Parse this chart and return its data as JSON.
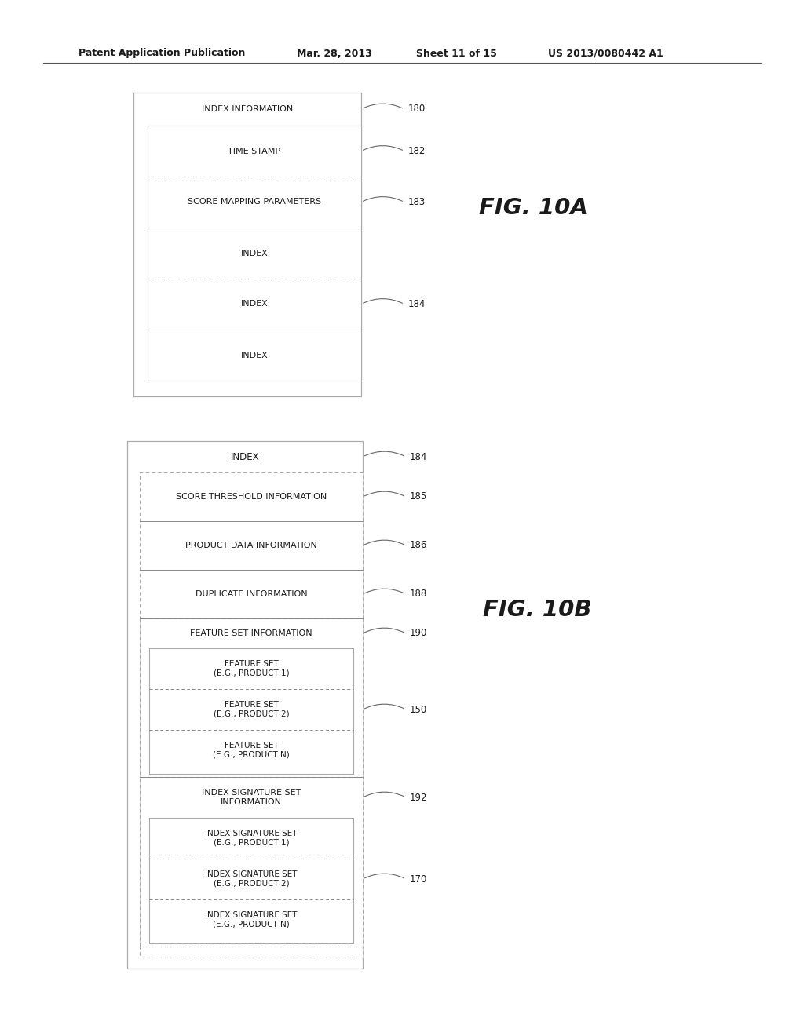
{
  "bg_color": "#ffffff",
  "header_text": "Patent Application Publication",
  "header_date": "Mar. 28, 2013",
  "header_sheet": "Sheet 11 of 15",
  "header_patent": "US 2013/0080442 A1",
  "fig10a_label": "FIG. 10A",
  "fig10b_label": "FIG. 10B",
  "diag1": {
    "title": "INDEX INFORMATION",
    "ref": "180",
    "inner_rows": [
      {
        "label": "TIME STAMP",
        "ref": "182",
        "sep_dotted": false
      },
      {
        "label": "SCORE MAPPING PARAMETERS",
        "ref": "183",
        "sep_dotted": true
      },
      {
        "label": "INDEX",
        "ref": null,
        "sep_dotted": false
      },
      {
        "label": "INDEX",
        "ref": "184",
        "sep_dotted": true
      },
      {
        "label": "INDEX",
        "ref": null,
        "sep_dotted": false
      }
    ]
  },
  "diag2": {
    "title": "INDEX",
    "ref": "184",
    "top_rows": [
      {
        "label": "SCORE THRESHOLD INFORMATION",
        "ref": "185"
      },
      {
        "label": "PRODUCT DATA INFORMATION",
        "ref": "186"
      },
      {
        "label": "DUPLICATE INFORMATION",
        "ref": "188"
      }
    ],
    "fsi": {
      "label": "FEATURE SET INFORMATION",
      "ref": "190",
      "items": [
        {
          "label": "FEATURE SET\n(E.G., PRODUCT 1)",
          "ref": null
        },
        {
          "label": "FEATURE SET\n(E.G., PRODUCT 2)",
          "ref": "150"
        },
        {
          "label": "FEATURE SET\n(E.G., PRODUCT N)",
          "ref": null
        }
      ]
    },
    "iss": {
      "label": "INDEX SIGNATURE SET\nINFORMATION",
      "ref": "192",
      "items": [
        {
          "label": "INDEX SIGNATURE SET\n(E.G., PRODUCT 1)",
          "ref": null
        },
        {
          "label": "INDEX SIGNATURE SET\n(E.G., PRODUCT 2)",
          "ref": "170"
        },
        {
          "label": "INDEX SIGNATURE SET\n(E.G., PRODUCT N)",
          "ref": null
        }
      ]
    }
  }
}
